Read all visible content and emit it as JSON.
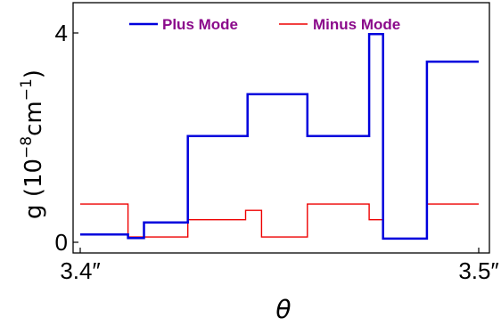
{
  "chart_data": {
    "type": "line",
    "step": true,
    "xlabel": "θ",
    "ylabel_parts": {
      "base": "g (10",
      "exp1": "−8",
      "mid": "cm",
      "exp2": "−1",
      "end": ")"
    },
    "xlim": [
      3.4,
      3.5
    ],
    "ylim": [
      -0.12,
      4.5
    ],
    "xticks": [
      {
        "value": 3.4,
        "label": "3.4″"
      },
      {
        "value": 3.5,
        "label": "3.5″"
      }
    ],
    "yticks": [
      {
        "value": 0,
        "label": "0"
      },
      {
        "value": 4,
        "label": "4"
      }
    ],
    "legend_position": "top",
    "legend_color": "#8b0a8b",
    "series": [
      {
        "name": "Plus Mode",
        "color": "#0000dd",
        "stroke_width": 2.5,
        "breakpoints": [
          3.4,
          3.412,
          3.416,
          3.427,
          3.442,
          3.457,
          3.4725,
          3.476,
          3.487,
          3.5
        ],
        "values": [
          0.15,
          0.08,
          0.38,
          2.03,
          2.83,
          2.03,
          3.98,
          0.07,
          3.45
        ]
      },
      {
        "name": "Minus Mode",
        "color": "#ee0000",
        "stroke_width": 1.4,
        "breakpoints": [
          3.4,
          3.412,
          3.427,
          3.4415,
          3.4455,
          3.457,
          3.4725,
          3.476,
          3.487,
          3.5
        ],
        "values": [
          0.73,
          0.1,
          0.43,
          0.61,
          0.1,
          0.73,
          0.43,
          0.07,
          0.73
        ]
      }
    ]
  }
}
